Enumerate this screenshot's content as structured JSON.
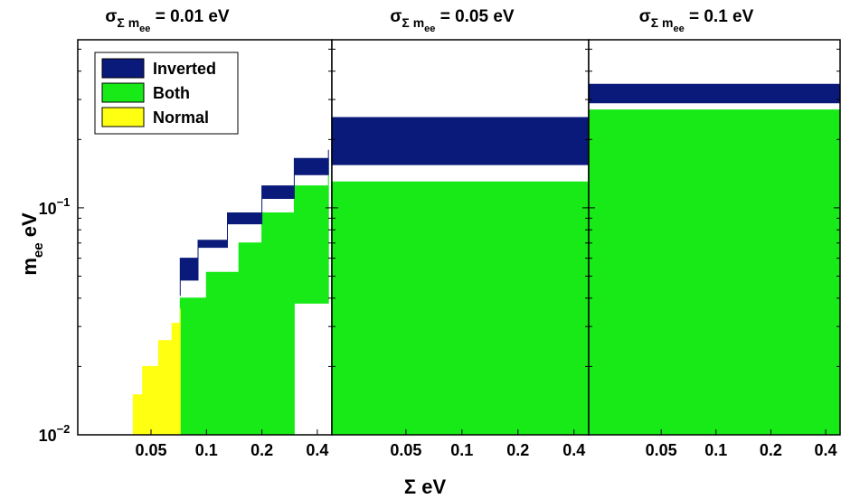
{
  "chart_data": [
    {
      "type": "area",
      "title_symbol": "σ",
      "title_sub_symbol": "Σ",
      "title_sub_text": "m",
      "title_sub_sub": "ee",
      "title_value": "= 0.01 eV",
      "xscale": "log",
      "yscale": "log",
      "xlim": [
        0.02,
        0.48
      ],
      "ylim": [
        0.01,
        0.55
      ],
      "xticks": [
        0.05,
        0.1,
        0.2,
        0.4
      ],
      "xtick_labels": [
        "0.05",
        "0.1",
        "0.2",
        "0.4"
      ],
      "grid": false,
      "regions": {
        "inverted": {
          "x": [
            0.072,
            0.09,
            0.13,
            0.2,
            0.3,
            0.46
          ],
          "y_low": [
            0.041,
            0.048,
            0.067,
            0.095,
            0.125,
            0.165
          ],
          "y_high": [
            0.06,
            0.072,
            0.085,
            0.11,
            0.14,
            0.18
          ]
        },
        "both": {
          "x": [
            0.072,
            0.1,
            0.15,
            0.2,
            0.3,
            0.46
          ],
          "y_low": [
            0.01,
            0.01,
            0.01,
            0.01,
            0.01,
            0.038
          ],
          "y_high": [
            0.04,
            0.052,
            0.07,
            0.095,
            0.125,
            0.165
          ]
        },
        "normal": {
          "x": [
            0.04,
            0.045,
            0.055,
            0.065,
            0.072
          ],
          "y_low": [
            0.01,
            0.01,
            0.01,
            0.01,
            0.01
          ],
          "y_high": [
            0.015,
            0.02,
            0.026,
            0.031,
            0.036
          ]
        }
      }
    },
    {
      "type": "area",
      "title_symbol": "σ",
      "title_sub_symbol": "Σ",
      "title_sub_text": "m",
      "title_sub_sub": "ee",
      "title_value": "= 0.05 eV",
      "xscale": "log",
      "yscale": "log",
      "xlim": [
        0.02,
        0.48
      ],
      "ylim": [
        0.01,
        0.55
      ],
      "xticks": [
        0.05,
        0.1,
        0.2,
        0.4
      ],
      "xtick_labels": [
        "0.05",
        "0.1",
        "0.2",
        "0.4"
      ],
      "grid": false,
      "regions": {
        "inverted": {
          "x": [
            0.02,
            0.48
          ],
          "y_low": [
            0.13,
            0.25
          ],
          "y_high": [
            0.155,
            0.27
          ]
        },
        "both": {
          "x": [
            0.02,
            0.48
          ],
          "y_low": [
            0.01,
            0.01
          ],
          "y_high": [
            0.13,
            0.25
          ]
        }
      }
    },
    {
      "type": "area",
      "title_symbol": "σ",
      "title_sub_symbol": "Σ",
      "title_sub_text": "m",
      "title_sub_sub": "ee",
      "title_value": "= 0.1 eV",
      "xscale": "log",
      "yscale": "log",
      "xlim": [
        0.02,
        0.48
      ],
      "ylim": [
        0.01,
        0.55
      ],
      "xticks": [
        0.05,
        0.1,
        0.2,
        0.4
      ],
      "xtick_labels": [
        "0.05",
        "0.1",
        "0.2",
        "0.4"
      ],
      "grid": false,
      "regions": {
        "inverted": {
          "x": [
            0.02,
            0.48
          ],
          "y_low": [
            0.27,
            0.35
          ],
          "y_high": [
            0.29,
            0.37
          ]
        },
        "both": {
          "x": [
            0.02,
            0.48
          ],
          "y_low": [
            0.01,
            0.01
          ],
          "y_high": [
            0.27,
            0.35
          ]
        }
      }
    }
  ],
  "axes": {
    "ylabel_main": "m",
    "ylabel_sub": "ee",
    "ylabel_unit": "eV",
    "yticks": [
      0.01,
      0.1
    ],
    "ytick_base": [
      "10",
      "10"
    ],
    "ytick_exp": [
      "−2",
      "−1"
    ],
    "xlabel_symbol": "Σ",
    "xlabel_unit": "eV"
  },
  "legend": {
    "placement": "top-left",
    "items": [
      {
        "label": "Inverted",
        "color": "#0a1a7a"
      },
      {
        "label": "Both",
        "color": "#17ea17"
      },
      {
        "label": "Normal",
        "color": "#ffff11"
      }
    ]
  },
  "colors": {
    "inverted": "#0a1a7a",
    "both": "#17ea17",
    "normal": "#ffff11"
  }
}
